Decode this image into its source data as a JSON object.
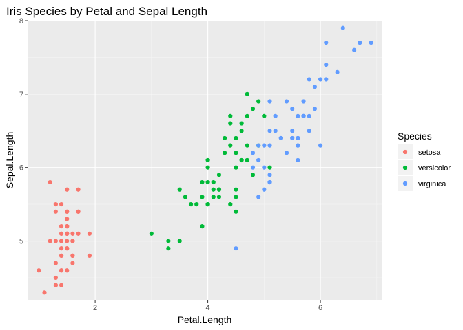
{
  "chart_data": {
    "type": "scatter",
    "title": "Iris Species by Petal and Sepal Length",
    "xlabel": "Petal.Length",
    "ylabel": "Sepal.Length",
    "xlim": [
      0.8,
      7.1
    ],
    "ylim": [
      4.2,
      8.0
    ],
    "x_ticks": [
      2,
      4,
      6
    ],
    "y_ticks": [
      5,
      6,
      7,
      8
    ],
    "x_tick_labels": [
      "2",
      "4",
      "6"
    ],
    "y_tick_labels": [
      "5",
      "6",
      "7",
      "8"
    ],
    "grid": true,
    "legend": {
      "title": "Species",
      "placement": "right"
    },
    "series": [
      {
        "name": "setosa",
        "color": "#F8766D",
        "points": [
          [
            1.4,
            5.1
          ],
          [
            1.4,
            4.9
          ],
          [
            1.3,
            4.7
          ],
          [
            1.5,
            4.6
          ],
          [
            1.4,
            5.0
          ],
          [
            1.7,
            5.4
          ],
          [
            1.4,
            4.6
          ],
          [
            1.5,
            5.0
          ],
          [
            1.4,
            4.4
          ],
          [
            1.5,
            4.9
          ],
          [
            1.5,
            5.4
          ],
          [
            1.6,
            4.8
          ],
          [
            1.4,
            4.8
          ],
          [
            1.1,
            4.3
          ],
          [
            1.2,
            5.8
          ],
          [
            1.5,
            5.7
          ],
          [
            1.3,
            5.4
          ],
          [
            1.4,
            5.1
          ],
          [
            1.7,
            5.7
          ],
          [
            1.5,
            5.1
          ],
          [
            1.7,
            5.4
          ],
          [
            1.5,
            5.1
          ],
          [
            1.0,
            4.6
          ],
          [
            1.7,
            5.1
          ],
          [
            1.9,
            4.8
          ],
          [
            1.6,
            5.0
          ],
          [
            1.6,
            5.0
          ],
          [
            1.5,
            5.2
          ],
          [
            1.4,
            5.2
          ],
          [
            1.6,
            4.7
          ],
          [
            1.6,
            4.8
          ],
          [
            1.5,
            5.4
          ],
          [
            1.5,
            5.2
          ],
          [
            1.4,
            5.5
          ],
          [
            1.5,
            4.9
          ],
          [
            1.2,
            5.0
          ],
          [
            1.3,
            5.5
          ],
          [
            1.4,
            4.9
          ],
          [
            1.3,
            4.4
          ],
          [
            1.5,
            5.1
          ],
          [
            1.3,
            5.0
          ],
          [
            1.3,
            4.5
          ],
          [
            1.3,
            4.4
          ],
          [
            1.6,
            5.0
          ],
          [
            1.9,
            5.1
          ],
          [
            1.4,
            4.8
          ],
          [
            1.6,
            5.1
          ],
          [
            1.4,
            4.6
          ],
          [
            1.5,
            5.3
          ],
          [
            1.4,
            5.0
          ]
        ]
      },
      {
        "name": "versicolor",
        "color": "#00BA38",
        "points": [
          [
            4.7,
            7.0
          ],
          [
            4.5,
            6.4
          ],
          [
            4.9,
            6.9
          ],
          [
            4.0,
            5.5
          ],
          [
            4.6,
            6.5
          ],
          [
            4.5,
            5.7
          ],
          [
            4.7,
            6.3
          ],
          [
            3.3,
            4.9
          ],
          [
            4.6,
            6.6
          ],
          [
            3.9,
            5.2
          ],
          [
            3.5,
            5.0
          ],
          [
            4.2,
            5.9
          ],
          [
            4.0,
            6.0
          ],
          [
            4.7,
            6.1
          ],
          [
            3.6,
            5.6
          ],
          [
            4.4,
            6.7
          ],
          [
            4.5,
            5.6
          ],
          [
            4.1,
            5.8
          ],
          [
            4.5,
            6.2
          ],
          [
            3.9,
            5.6
          ],
          [
            4.8,
            5.9
          ],
          [
            4.0,
            6.1
          ],
          [
            4.9,
            6.3
          ],
          [
            4.7,
            6.1
          ],
          [
            4.3,
            6.4
          ],
          [
            4.4,
            6.6
          ],
          [
            4.8,
            6.8
          ],
          [
            5.0,
            6.7
          ],
          [
            4.5,
            6.0
          ],
          [
            3.5,
            5.7
          ],
          [
            3.8,
            5.5
          ],
          [
            3.7,
            5.5
          ],
          [
            3.9,
            5.8
          ],
          [
            5.1,
            6.0
          ],
          [
            4.5,
            5.4
          ],
          [
            4.5,
            6.0
          ],
          [
            4.7,
            6.7
          ],
          [
            4.4,
            6.3
          ],
          [
            4.1,
            5.6
          ],
          [
            4.0,
            5.5
          ],
          [
            4.4,
            5.5
          ],
          [
            4.6,
            6.1
          ],
          [
            4.0,
            5.8
          ],
          [
            3.3,
            5.0
          ],
          [
            4.2,
            5.6
          ],
          [
            4.2,
            5.7
          ],
          [
            4.2,
            5.7
          ],
          [
            4.3,
            6.2
          ],
          [
            3.0,
            5.1
          ],
          [
            4.1,
            5.7
          ]
        ]
      },
      {
        "name": "virginica",
        "color": "#619CFF",
        "points": [
          [
            6.0,
            6.3
          ],
          [
            5.1,
            5.8
          ],
          [
            5.9,
            7.1
          ],
          [
            5.6,
            6.3
          ],
          [
            5.8,
            6.5
          ],
          [
            6.6,
            7.6
          ],
          [
            4.5,
            4.9
          ],
          [
            6.3,
            7.3
          ],
          [
            5.8,
            6.7
          ],
          [
            6.1,
            7.2
          ],
          [
            5.1,
            6.5
          ],
          [
            5.3,
            6.4
          ],
          [
            5.5,
            6.8
          ],
          [
            5.0,
            5.7
          ],
          [
            5.1,
            5.8
          ],
          [
            5.3,
            6.4
          ],
          [
            5.5,
            6.5
          ],
          [
            6.7,
            7.7
          ],
          [
            6.9,
            7.7
          ],
          [
            5.0,
            6.0
          ],
          [
            5.7,
            6.9
          ],
          [
            4.9,
            5.6
          ],
          [
            6.7,
            7.7
          ],
          [
            4.9,
            6.3
          ],
          [
            5.7,
            6.7
          ],
          [
            6.0,
            7.2
          ],
          [
            4.8,
            6.2
          ],
          [
            4.9,
            6.1
          ],
          [
            5.6,
            6.4
          ],
          [
            5.8,
            7.2
          ],
          [
            6.1,
            7.4
          ],
          [
            6.4,
            7.9
          ],
          [
            5.6,
            6.4
          ],
          [
            5.1,
            6.3
          ],
          [
            5.6,
            6.1
          ],
          [
            6.1,
            7.7
          ],
          [
            5.6,
            6.3
          ],
          [
            5.5,
            6.4
          ],
          [
            4.8,
            6.0
          ],
          [
            5.4,
            6.9
          ],
          [
            5.6,
            6.7
          ],
          [
            5.1,
            6.9
          ],
          [
            5.1,
            5.8
          ],
          [
            5.9,
            6.8
          ],
          [
            5.7,
            6.7
          ],
          [
            5.2,
            6.7
          ],
          [
            5.0,
            6.3
          ],
          [
            5.2,
            6.5
          ],
          [
            5.4,
            6.2
          ],
          [
            5.1,
            5.9
          ]
        ]
      }
    ]
  }
}
